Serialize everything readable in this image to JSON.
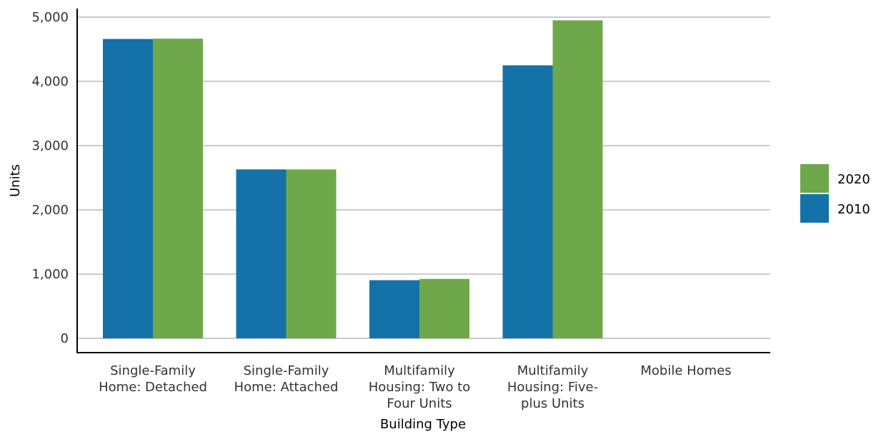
{
  "chart_data": {
    "type": "bar",
    "title": "",
    "xlabel": "Building Type",
    "ylabel": "Units",
    "ylim": [
      0,
      5000
    ],
    "yticks": [
      0,
      1000,
      2000,
      3000,
      4000,
      5000
    ],
    "ytick_labels": [
      "0",
      "1,000",
      "2,000",
      "3,000",
      "4,000",
      "5,000"
    ],
    "grid": true,
    "legend_position": "right",
    "categories": [
      "Single-Family Home: Detached",
      "Single-Family Home: Attached",
      "Multifamily Housing: Two to Four Units",
      "Multifamily Housing: Five-plus Units",
      "Mobile Homes"
    ],
    "category_label_lines": [
      [
        "Single-Family",
        "Home: Detached"
      ],
      [
        "Single-Family",
        "Home: Attached"
      ],
      [
        "Multifamily",
        "Housing: Two to",
        "Four Units"
      ],
      [
        "Multifamily",
        "Housing: Five-",
        "plus Units"
      ],
      [
        "Mobile Homes"
      ]
    ],
    "series": [
      {
        "name": "2010",
        "color": "#1472a9",
        "values": [
          4660,
          2630,
          905,
          4250,
          0
        ]
      },
      {
        "name": "2020",
        "color": "#6fa84a",
        "values": [
          4665,
          2630,
          925,
          4950,
          0
        ]
      }
    ],
    "legend_order": [
      "2020",
      "2010"
    ]
  }
}
